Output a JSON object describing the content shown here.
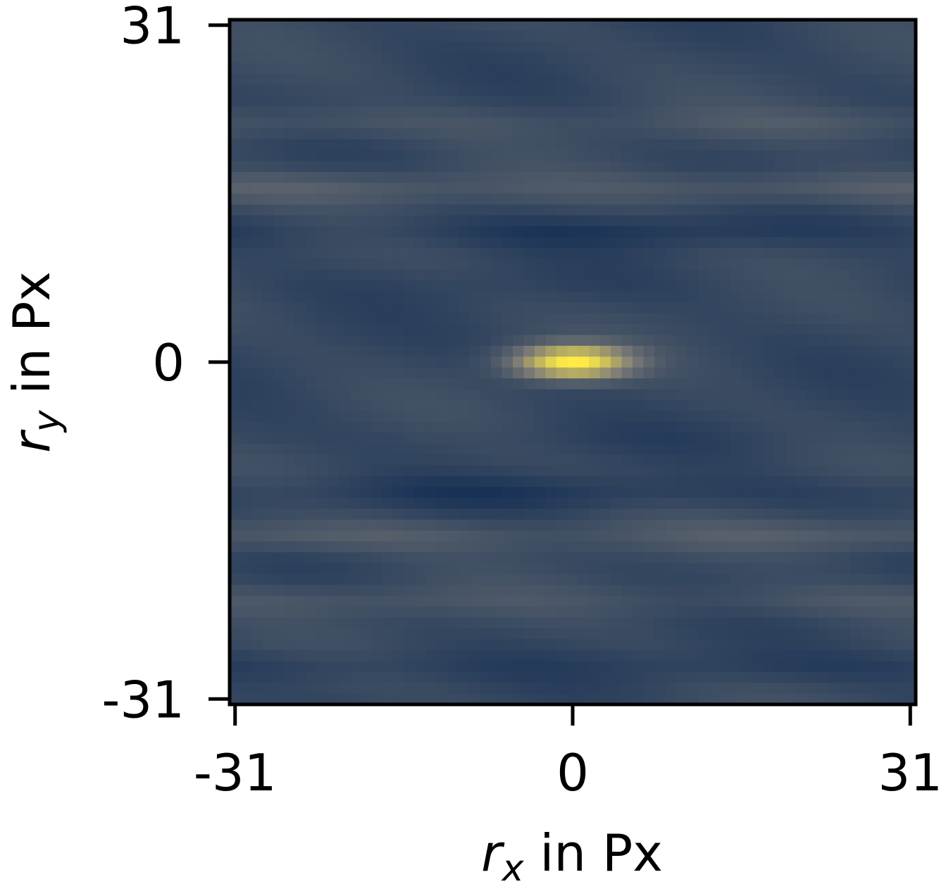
{
  "chart_data": {
    "type": "heatmap",
    "title": "",
    "colormap": "cividis",
    "colors": {
      "low": "#00204d",
      "mid": "#7c7b78",
      "high": "#ffea46"
    },
    "x": {
      "min": -31,
      "max": 31,
      "ticks": [
        -31,
        0,
        31
      ],
      "tick_labels": [
        "-31",
        "0",
        "31"
      ],
      "label_symbol": "r",
      "label_sub": "x",
      "label_rest": " in Px"
    },
    "y": {
      "min": -31,
      "max": 31,
      "ticks": [
        31,
        0,
        -31
      ],
      "tick_labels": [
        "31",
        "0",
        "-31"
      ],
      "label_symbol": "r",
      "label_sub": "y",
      "label_rest": " in Px"
    },
    "peak": {
      "x": 0,
      "y": 0,
      "value": 1.0
    },
    "background_level": 0.22,
    "horizontal_bands": [
      {
        "y": 22,
        "level": 0.3
      },
      {
        "y": 16,
        "level": 0.34
      },
      {
        "y": 12,
        "level": 0.14
      },
      {
        "y": 7,
        "level": 0.2
      },
      {
        "y": -7,
        "level": 0.2
      },
      {
        "y": -12,
        "level": 0.14
      },
      {
        "y": -16,
        "level": 0.34
      },
      {
        "y": -22,
        "level": 0.3
      },
      {
        "y": -28,
        "level": 0.16
      }
    ]
  }
}
